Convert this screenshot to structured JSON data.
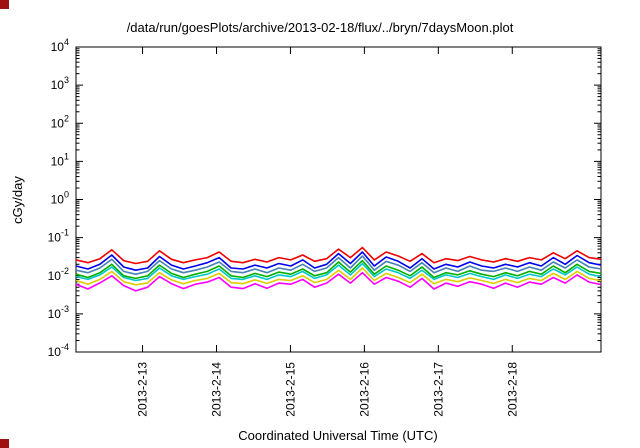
{
  "decor": {
    "corner_marker_color": "#a01010"
  },
  "chart_data": {
    "type": "line",
    "title": "/data/run/goesPlots/archive/2013-02-18/flux/../bryn/7daysMoon.plot",
    "xlabel": "Coordinated Universal Time (UTC)",
    "ylabel": "cGy/day",
    "y_scale": "log10",
    "y_log_min": -4,
    "y_log_max": 4,
    "y_tick_exponents": [
      4,
      3,
      2,
      1,
      0,
      -1,
      -2,
      -3,
      -4
    ],
    "x_span_days": 7.1,
    "x_ticks": [
      {
        "pos_days": 0.9,
        "label": "2013-2-13"
      },
      {
        "pos_days": 1.9,
        "label": "2013-2-14"
      },
      {
        "pos_days": 2.9,
        "label": "2013-2-15"
      },
      {
        "pos_days": 3.9,
        "label": "2013-2-16"
      },
      {
        "pos_days": 4.9,
        "label": "2013-2-17"
      },
      {
        "pos_days": 5.9,
        "label": "2013-2-18"
      }
    ],
    "grid": false,
    "legend": "none",
    "frame_color": "#000000",
    "series": [
      {
        "name": "magenta",
        "color": "#ff00ff",
        "values": [
          0.006,
          0.0045,
          0.0065,
          0.01,
          0.0055,
          0.004,
          0.005,
          0.0095,
          0.0062,
          0.0046,
          0.006,
          0.0068,
          0.009,
          0.005,
          0.0046,
          0.0062,
          0.0047,
          0.0064,
          0.006,
          0.008,
          0.005,
          0.0064,
          0.011,
          0.0064,
          0.012,
          0.006,
          0.009,
          0.0072,
          0.005,
          0.0085,
          0.0045,
          0.0064,
          0.0053,
          0.007,
          0.006,
          0.0047,
          0.0064,
          0.005,
          0.0068,
          0.006,
          0.009,
          0.0064,
          0.0105,
          0.0068,
          0.0059
        ]
      },
      {
        "name": "yellow",
        "color": "#ddcc00",
        "values": [
          0.0075,
          0.006,
          0.008,
          0.013,
          0.007,
          0.0058,
          0.0065,
          0.012,
          0.0078,
          0.0062,
          0.0075,
          0.0085,
          0.0115,
          0.0066,
          0.0062,
          0.0078,
          0.0063,
          0.008,
          0.0075,
          0.01,
          0.0066,
          0.008,
          0.014,
          0.008,
          0.016,
          0.0075,
          0.0115,
          0.009,
          0.0066,
          0.011,
          0.0062,
          0.008,
          0.007,
          0.0088,
          0.0075,
          0.0063,
          0.008,
          0.0066,
          0.0085,
          0.0075,
          0.0115,
          0.008,
          0.013,
          0.0085,
          0.0074
        ]
      },
      {
        "name": "cyan",
        "color": "#00c8c8",
        "values": [
          0.0095,
          0.008,
          0.0105,
          0.017,
          0.009,
          0.0075,
          0.0085,
          0.016,
          0.01,
          0.008,
          0.0095,
          0.011,
          0.015,
          0.0085,
          0.008,
          0.01,
          0.008,
          0.0105,
          0.0095,
          0.013,
          0.0085,
          0.0105,
          0.019,
          0.0105,
          0.021,
          0.0095,
          0.015,
          0.012,
          0.0085,
          0.014,
          0.008,
          0.0105,
          0.009,
          0.0115,
          0.0095,
          0.008,
          0.0105,
          0.0085,
          0.011,
          0.0095,
          0.015,
          0.0105,
          0.017,
          0.011,
          0.0095
        ]
      },
      {
        "name": "green",
        "color": "#00b000",
        "values": [
          0.011,
          0.009,
          0.012,
          0.02,
          0.01,
          0.0085,
          0.01,
          0.019,
          0.0115,
          0.009,
          0.011,
          0.013,
          0.018,
          0.01,
          0.009,
          0.0115,
          0.0095,
          0.0125,
          0.011,
          0.015,
          0.01,
          0.012,
          0.023,
          0.0125,
          0.025,
          0.011,
          0.018,
          0.014,
          0.01,
          0.017,
          0.009,
          0.012,
          0.0105,
          0.0135,
          0.011,
          0.0095,
          0.012,
          0.01,
          0.013,
          0.011,
          0.018,
          0.012,
          0.02,
          0.013,
          0.0115
        ]
      },
      {
        "name": "steelblue",
        "color": "#4682b4",
        "values": [
          0.014,
          0.012,
          0.016,
          0.027,
          0.013,
          0.011,
          0.013,
          0.025,
          0.015,
          0.012,
          0.014,
          0.017,
          0.023,
          0.013,
          0.012,
          0.015,
          0.012,
          0.016,
          0.014,
          0.02,
          0.013,
          0.016,
          0.03,
          0.016,
          0.033,
          0.014,
          0.024,
          0.019,
          0.013,
          0.022,
          0.012,
          0.016,
          0.013,
          0.018,
          0.014,
          0.013,
          0.016,
          0.013,
          0.017,
          0.014,
          0.023,
          0.016,
          0.026,
          0.017,
          0.015
        ]
      },
      {
        "name": "blue",
        "color": "#0000ee",
        "values": [
          0.018,
          0.015,
          0.02,
          0.035,
          0.017,
          0.014,
          0.016,
          0.032,
          0.019,
          0.015,
          0.018,
          0.022,
          0.03,
          0.016,
          0.015,
          0.019,
          0.016,
          0.021,
          0.018,
          0.026,
          0.016,
          0.02,
          0.038,
          0.021,
          0.042,
          0.018,
          0.031,
          0.024,
          0.016,
          0.028,
          0.015,
          0.02,
          0.017,
          0.023,
          0.018,
          0.016,
          0.02,
          0.017,
          0.022,
          0.018,
          0.03,
          0.02,
          0.034,
          0.022,
          0.019
        ]
      },
      {
        "name": "red",
        "color": "#ee0000",
        "values": [
          0.026,
          0.022,
          0.028,
          0.048,
          0.025,
          0.021,
          0.024,
          0.045,
          0.027,
          0.022,
          0.026,
          0.03,
          0.042,
          0.024,
          0.022,
          0.027,
          0.023,
          0.03,
          0.026,
          0.035,
          0.024,
          0.028,
          0.05,
          0.03,
          0.055,
          0.026,
          0.042,
          0.033,
          0.024,
          0.038,
          0.022,
          0.028,
          0.025,
          0.032,
          0.026,
          0.023,
          0.028,
          0.024,
          0.03,
          0.026,
          0.04,
          0.028,
          0.045,
          0.03,
          0.027
        ]
      }
    ]
  }
}
